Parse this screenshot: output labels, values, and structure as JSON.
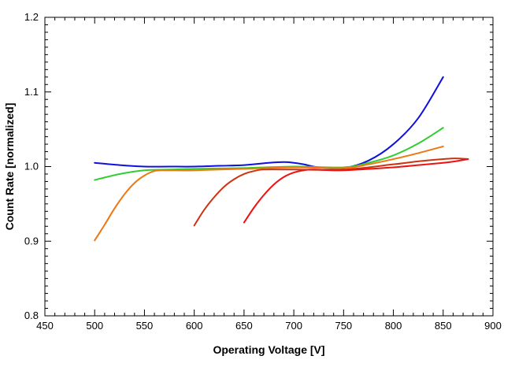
{
  "chart_data": {
    "type": "line",
    "xlabel": "Operating Voltage [V]",
    "ylabel": "Count Rate [normalized]",
    "xlim": [
      450,
      900
    ],
    "ylim": [
      0.8,
      1.2
    ],
    "x_ticks": [
      450,
      500,
      550,
      600,
      650,
      700,
      750,
      800,
      850,
      900
    ],
    "x_tick_labels": [
      "450",
      "500",
      "550",
      "600",
      "650",
      "700",
      "750",
      "800",
      "850",
      "900"
    ],
    "y_ticks": [
      0.8,
      0.9,
      1.0,
      1.1,
      1.2
    ],
    "y_tick_labels": [
      "0.8",
      "0.9",
      "1.0",
      "1.1",
      "1.2"
    ],
    "grid": false,
    "series": [
      {
        "color": "#1010dd",
        "x": [
          500,
          525,
          550,
          575,
          600,
          625,
          650,
          675,
          690,
          700,
          710,
          725,
          750,
          775,
          800,
          825,
          850
        ],
        "y": [
          1.005,
          1.002,
          1.0,
          1.0,
          1.0,
          1.001,
          1.002,
          1.005,
          1.006,
          1.005,
          1.003,
          0.999,
          0.998,
          1.008,
          1.03,
          1.065,
          1.12
        ]
      },
      {
        "color": "#33cc33",
        "x": [
          500,
          525,
          550,
          575,
          600,
          650,
          700,
          750,
          775,
          800,
          825,
          850
        ],
        "y": [
          0.982,
          0.99,
          0.995,
          0.996,
          0.997,
          0.998,
          1.0,
          0.999,
          1.005,
          1.015,
          1.031,
          1.052
        ]
      },
      {
        "color": "#ee7711",
        "x": [
          500,
          510,
          520,
          530,
          540,
          550,
          560,
          570,
          600,
          650,
          700,
          750,
          775,
          800,
          825,
          850
        ],
        "y": [
          0.901,
          0.922,
          0.944,
          0.963,
          0.978,
          0.988,
          0.994,
          0.995,
          0.995,
          0.997,
          0.999,
          0.998,
          1.003,
          1.01,
          1.018,
          1.027
        ]
      },
      {
        "color": "#cc3311",
        "x": [
          600,
          610,
          620,
          630,
          640,
          650,
          660,
          670,
          700,
          750,
          800,
          825,
          850,
          862,
          875
        ],
        "y": [
          0.921,
          0.942,
          0.959,
          0.973,
          0.983,
          0.99,
          0.994,
          0.996,
          0.996,
          0.996,
          1.003,
          1.007,
          1.01,
          1.011,
          1.01
        ]
      },
      {
        "color": "#ee1111",
        "x": [
          650,
          660,
          670,
          680,
          690,
          700,
          710,
          720,
          750,
          800,
          825,
          850,
          862,
          875
        ],
        "y": [
          0.925,
          0.945,
          0.962,
          0.976,
          0.986,
          0.992,
          0.995,
          0.996,
          0.995,
          0.999,
          1.002,
          1.005,
          1.007,
          1.01
        ]
      }
    ]
  }
}
